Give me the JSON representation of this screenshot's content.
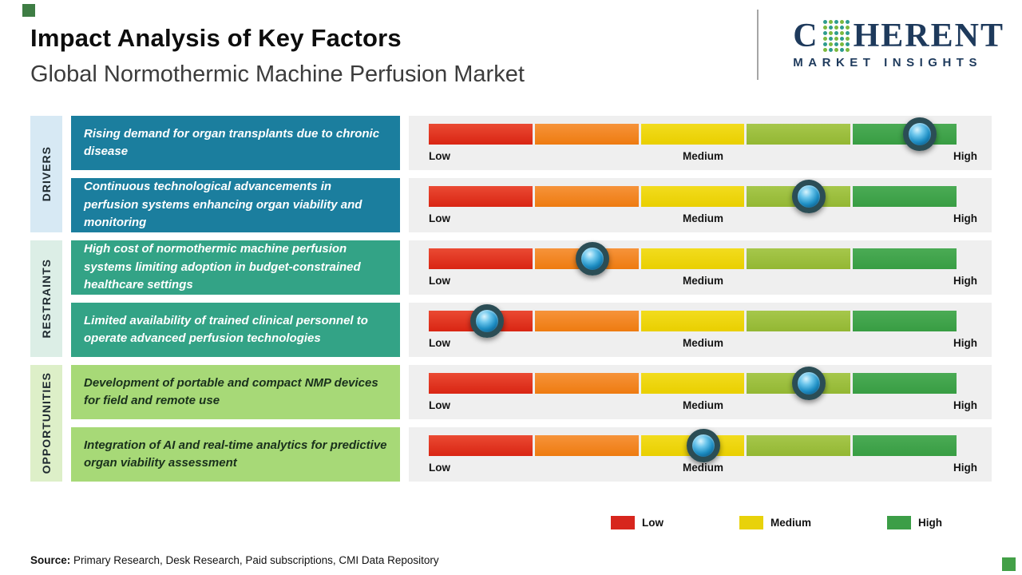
{
  "header": {
    "title": "Impact Analysis of Key Factors",
    "subtitle": "Global Normothermic Machine Perfusion Market"
  },
  "logo": {
    "brand_prefix": "C",
    "brand_suffix": "HERENT",
    "tagline": "MARKET INSIGHTS",
    "brand_color": "#1e3a5c",
    "dot_colors": [
      "#2e9c8e",
      "#7cb93e"
    ]
  },
  "groups": [
    {
      "label": "DRIVERS"
    },
    {
      "label": "RESTRAINTS"
    },
    {
      "label": "OPPORTUNITIES"
    }
  ],
  "rows": [
    {
      "group": "Drivers",
      "text": "Rising demand for organ transplants due to chronic disease",
      "impact_percent": 93,
      "impact_level": "High",
      "scale": [
        "Low",
        "Medium",
        "High"
      ]
    },
    {
      "group": "Drivers",
      "text": "Continuous technological advancements in perfusion systems enhancing organ viability and monitoring",
      "impact_percent": 72,
      "impact_level": "Medium-High",
      "scale": [
        "Low",
        "Medium",
        "High"
      ]
    },
    {
      "group": "Restraints",
      "text": "High cost of normothermic machine perfusion systems limiting adoption in budget-constrained healthcare settings",
      "impact_percent": 31,
      "impact_level": "Low-Medium",
      "scale": [
        "Low",
        "Medium",
        "High"
      ]
    },
    {
      "group": "Restraints",
      "text": "Limited availability of trained clinical personnel to operate advanced perfusion technologies",
      "impact_percent": 11,
      "impact_level": "Low",
      "scale": [
        "Low",
        "Medium",
        "High"
      ]
    },
    {
      "group": "Opportunities",
      "text": "Development of portable and compact NMP devices for field and remote use",
      "impact_percent": 72,
      "impact_level": "Medium-High",
      "scale": [
        "Low",
        "Medium",
        "High"
      ]
    },
    {
      "group": "Opportunities",
      "text": "Integration of AI and real-time analytics for predictive organ viability assessment",
      "impact_percent": 52,
      "impact_level": "Medium",
      "scale": [
        "Low",
        "Medium",
        "High"
      ]
    }
  ],
  "bar_colors": [
    "#d92513",
    "#ee7b10",
    "#e9cf00",
    "#93b733",
    "#389d43"
  ],
  "legend": {
    "items": [
      {
        "label": "Low",
        "color": "#d7261d"
      },
      {
        "label": "Medium",
        "color": "#e8d20a"
      },
      {
        "label": "High",
        "color": "#3c9e47"
      }
    ]
  },
  "source": {
    "label": "Source:",
    "text": " Primary Research, Desk Research, Paid subscriptions, CMI Data Repository"
  },
  "chart_data": {
    "type": "bar",
    "title": "Impact Analysis of Key Factors",
    "subtitle": "Global Normothermic Machine Perfusion Market",
    "scale_labels": [
      "Low",
      "Medium",
      "High"
    ],
    "scale_range": [
      0,
      100
    ],
    "series": [
      {
        "category": "Drivers",
        "factor": "Rising demand for organ transplants due to chronic disease",
        "impact_percent": 93,
        "impact_level": "High"
      },
      {
        "category": "Drivers",
        "factor": "Continuous technological advancements in perfusion systems enhancing organ viability and monitoring",
        "impact_percent": 72,
        "impact_level": "Medium-High"
      },
      {
        "category": "Restraints",
        "factor": "High cost of normothermic machine perfusion systems limiting adoption in budget-constrained healthcare settings",
        "impact_percent": 31,
        "impact_level": "Low-Medium"
      },
      {
        "category": "Restraints",
        "factor": "Limited availability of trained clinical personnel to operate advanced perfusion technologies",
        "impact_percent": 11,
        "impact_level": "Low"
      },
      {
        "category": "Opportunities",
        "factor": "Development of portable and compact NMP devices for field and remote use",
        "impact_percent": 72,
        "impact_level": "Medium-High"
      },
      {
        "category": "Opportunities",
        "factor": "Integration of AI and real-time analytics for predictive organ viability assessment",
        "impact_percent": 52,
        "impact_level": "Medium"
      }
    ],
    "legend": [
      "Low",
      "Medium",
      "High"
    ],
    "legend_position": "bottom-right",
    "grid": false
  }
}
